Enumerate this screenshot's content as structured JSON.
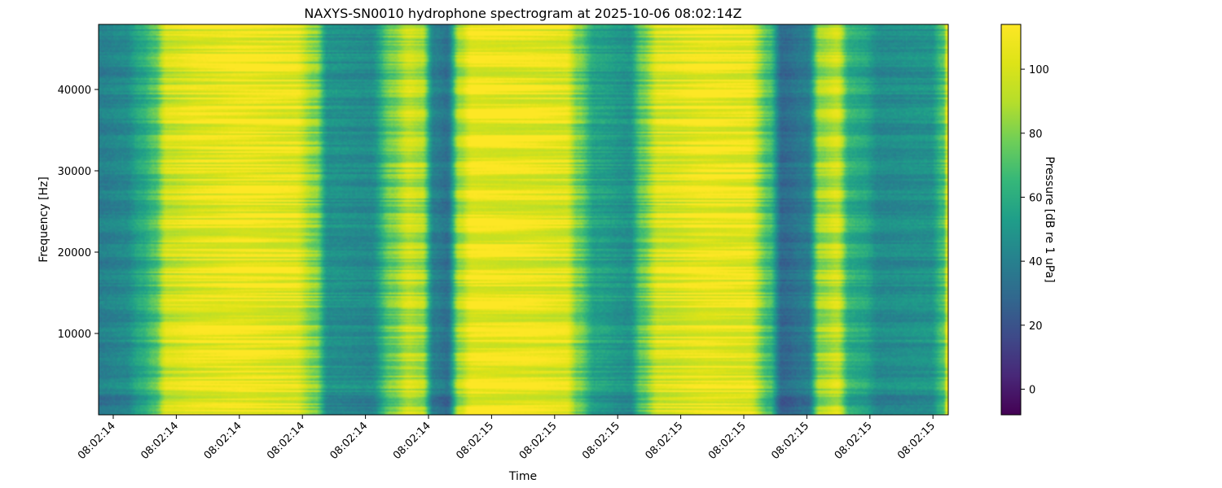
{
  "chart_data": {
    "type": "heatmap",
    "title": "NAXYS-SN0010 hydrophone spectrogram at 2025-10-06 08:02:14Z",
    "xlabel": "Time",
    "ylabel": "Frequency [Hz]",
    "x_tick_labels": [
      "08:02:14",
      "08:02:14",
      "08:02:14",
      "08:02:14",
      "08:02:14",
      "08:02:14",
      "08:02:15",
      "08:02:15",
      "08:02:15",
      "08:02:15",
      "08:02:15",
      "08:02:15",
      "08:02:15",
      "08:02:15"
    ],
    "y_ticks": [
      10000,
      20000,
      30000,
      40000
    ],
    "y_tick_labels": [
      "10000",
      "20000",
      "30000",
      "40000"
    ],
    "ylim": [
      0,
      48000
    ],
    "colorbar": {
      "label": "Pressure [dB re 1 uPa]",
      "colormap": "viridis",
      "range": [
        -8,
        114
      ],
      "ticks": [
        0,
        20,
        40,
        60,
        80,
        100
      ],
      "tick_labels": [
        "0",
        "20",
        "40",
        "60",
        "80",
        "100"
      ]
    },
    "time_profile_db": [
      {
        "t": 0.0,
        "db": 40
      },
      {
        "t": 0.03,
        "db": 44
      },
      {
        "t": 0.05,
        "db": 58
      },
      {
        "t": 0.065,
        "db": 70
      },
      {
        "t": 0.08,
        "db": 98
      },
      {
        "t": 0.12,
        "db": 104
      },
      {
        "t": 0.17,
        "db": 108
      },
      {
        "t": 0.23,
        "db": 104
      },
      {
        "t": 0.255,
        "db": 82
      },
      {
        "t": 0.27,
        "db": 48
      },
      {
        "t": 0.32,
        "db": 45
      },
      {
        "t": 0.345,
        "db": 78
      },
      {
        "t": 0.365,
        "db": 96
      },
      {
        "t": 0.38,
        "db": 90
      },
      {
        "t": 0.395,
        "db": 40
      },
      {
        "t": 0.41,
        "db": 34
      },
      {
        "t": 0.425,
        "db": 90
      },
      {
        "t": 0.44,
        "db": 108
      },
      {
        "t": 0.5,
        "db": 106
      },
      {
        "t": 0.55,
        "db": 102
      },
      {
        "t": 0.565,
        "db": 78
      },
      {
        "t": 0.585,
        "db": 55
      },
      {
        "t": 0.625,
        "db": 48
      },
      {
        "t": 0.64,
        "db": 74
      },
      {
        "t": 0.66,
        "db": 100
      },
      {
        "t": 0.72,
        "db": 108
      },
      {
        "t": 0.765,
        "db": 106
      },
      {
        "t": 0.79,
        "db": 70
      },
      {
        "t": 0.805,
        "db": 30
      },
      {
        "t": 0.835,
        "db": 38
      },
      {
        "t": 0.85,
        "db": 86
      },
      {
        "t": 0.87,
        "db": 96
      },
      {
        "t": 0.885,
        "db": 62
      },
      {
        "t": 0.9,
        "db": 58
      },
      {
        "t": 0.92,
        "db": 45
      },
      {
        "t": 0.98,
        "db": 48
      },
      {
        "t": 0.995,
        "db": 68
      },
      {
        "t": 1.0,
        "db": 100
      }
    ]
  }
}
